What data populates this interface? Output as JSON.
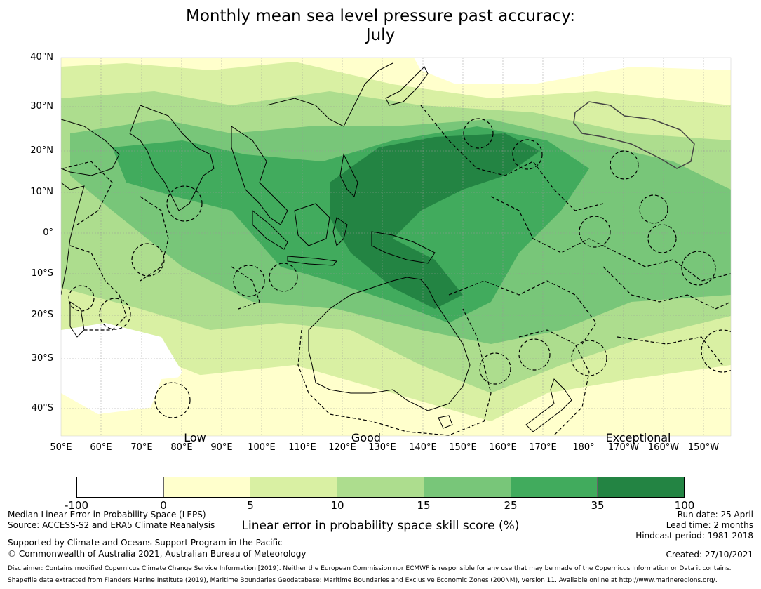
{
  "title": {
    "line1": "Monthly mean sea level pressure past accuracy:",
    "line2": "July"
  },
  "map": {
    "lat_labels": [
      "40°N",
      "30°N",
      "20°N",
      "10°N",
      "0°",
      "10°S",
      "20°S",
      "30°S",
      "40°S"
    ],
    "lon_labels": [
      "50°E",
      "60°E",
      "70°E",
      "80°E",
      "90°E",
      "100°E",
      "110°E",
      "120°E",
      "130°E",
      "140°E",
      "150°E",
      "160°E",
      "170°E",
      "180°",
      "170°W",
      "160°W",
      "150°W"
    ],
    "category_labels": [
      "Low",
      "Good",
      "Exceptional"
    ],
    "colors": {
      "c0": "#ffffff",
      "c1": "#ffffcc",
      "c2": "#d9f0a3",
      "c3": "#addd8e",
      "c4": "#78c679",
      "c5": "#41ab5d",
      "c6": "#238443",
      "land_outline": "#000000"
    }
  },
  "colorbar": {
    "ticks": [
      "-100",
      "0",
      "5",
      "10",
      "15",
      "25",
      "35",
      "100"
    ],
    "colors": [
      "#ffffff",
      "#ffffcc",
      "#d9f0a3",
      "#addd8e",
      "#78c679",
      "#41ab5d",
      "#238443"
    ],
    "label": "Linear error in probability space skill score (%)"
  },
  "footer": {
    "left1": "Median Linear Error in Probability Space (LEPS)",
    "left2": "Source: ACCESS-S2 and ERA5 Climate Reanalysis",
    "left3": "Supported by Climate and Oceans Support Program in the Pacific",
    "left4": "© Commonwealth of Australia 2021, Australian Bureau of Meteorology",
    "right1": "Run date: 25 April",
    "right2": "Lead time: 2 months",
    "right3": "Hindcast period: 1981-2018",
    "right4": "Created: 27/10/2021",
    "disclaimer1": "Disclaimer: Contains modified Copernicus Climate Change Service Information [2019]. Neither the European Commission nor ECMWF is responsible for any use that may be made of the Copernicus Information or Data it contains.",
    "disclaimer2": "Shapefile data extracted from Flanders Marine Institute (2019), Maritime Boundaries Geodatabase: Maritime Boundaries and Exclusive Economic Zones (200NM), version 11. Available online at http://www.marineregions.org/."
  }
}
